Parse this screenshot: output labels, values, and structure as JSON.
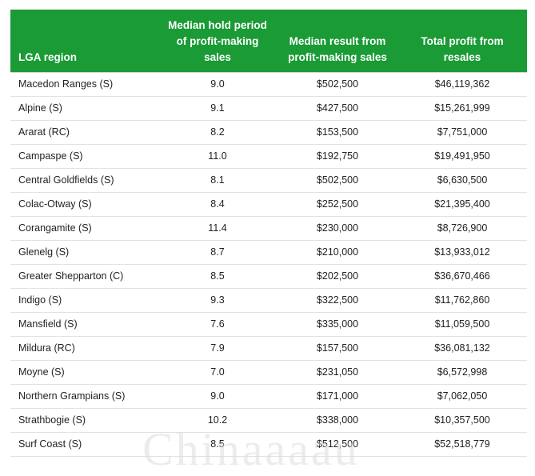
{
  "table": {
    "headers": [
      "LGA region",
      "Median hold period of profit-making sales",
      "Median result from profit-making sales",
      "Total profit from resales"
    ],
    "rows": [
      [
        "Macedon Ranges (S)",
        "9.0",
        "$502,500",
        "$46,119,362"
      ],
      [
        "Alpine (S)",
        "9.1",
        "$427,500",
        "$15,261,999"
      ],
      [
        "Ararat (RC)",
        "8.2",
        "$153,500",
        "$7,751,000"
      ],
      [
        "Campaspe (S)",
        "11.0",
        "$192,750",
        "$19,491,950"
      ],
      [
        "Central Goldfields (S)",
        "8.1",
        "$502,500",
        "$6,630,500"
      ],
      [
        "Colac-Otway (S)",
        "8.4",
        "$252,500",
        "$21,395,400"
      ],
      [
        "Corangamite (S)",
        "11.4",
        "$230,000",
        "$8,726,900"
      ],
      [
        "Glenelg (S)",
        "8.7",
        "$210,000",
        "$13,933,012"
      ],
      [
        "Greater Shepparton (C)",
        "8.5",
        "$202,500",
        "$36,670,466"
      ],
      [
        "Indigo (S)",
        "9.3",
        "$322,500",
        "$11,762,860"
      ],
      [
        "Mansfield (S)",
        "7.6",
        "$335,000",
        "$11,059,500"
      ],
      [
        "Mildura (RC)",
        "7.9",
        "$157,500",
        "$36,081,132"
      ],
      [
        "Moyne (S)",
        "7.0",
        "$231,050",
        "$6,572,998"
      ],
      [
        "Northern Grampians (S)",
        "9.0",
        "$171,000",
        "$7,062,050"
      ],
      [
        "Strathbogie (S)",
        "10.2",
        "$338,000",
        "$10,357,500"
      ],
      [
        "Surf Coast (S)",
        "8.5",
        "$512,500",
        "$52,518,779"
      ]
    ]
  },
  "watermark": "Chinaaaau",
  "colors": {
    "header_bg": "#1a9b35",
    "header_text": "#ffffff"
  }
}
